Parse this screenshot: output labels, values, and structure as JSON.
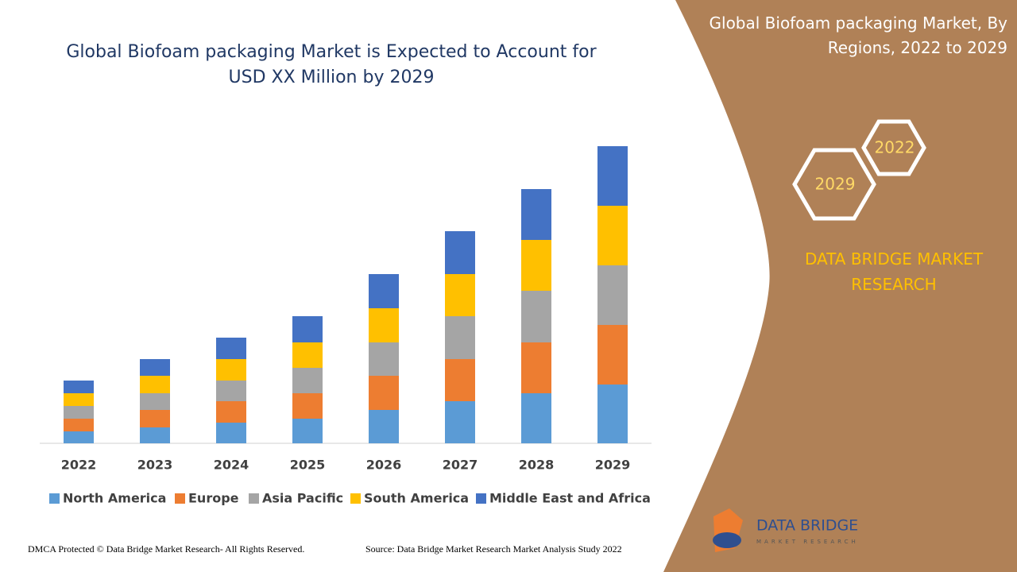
{
  "chart_data": {
    "type": "stacked-bar",
    "title": "Global Biofoam packaging Market is Expected to Account for USD XX Million by 2029",
    "categories": [
      "2022",
      "2023",
      "2024",
      "2025",
      "2026",
      "2027",
      "2028",
      "2029"
    ],
    "series": [
      {
        "name": "North America",
        "color": "#5b9bd5",
        "values": [
          15,
          20,
          26,
          31,
          42,
          53,
          63,
          74
        ]
      },
      {
        "name": "Europe",
        "color": "#ed7d31",
        "values": [
          16,
          22,
          27,
          32,
          43,
          53,
          64,
          75
        ]
      },
      {
        "name": "Asia Pacific",
        "color": "#a5a5a5",
        "values": [
          16,
          21,
          26,
          32,
          42,
          54,
          65,
          75
        ]
      },
      {
        "name": "South America",
        "color": "#ffc000",
        "values": [
          16,
          22,
          27,
          32,
          43,
          53,
          64,
          75
        ]
      },
      {
        "name": "Middle East and Africa",
        "color": "#4472c4",
        "values": [
          16,
          21,
          27,
          33,
          43,
          54,
          64,
          75
        ]
      }
    ],
    "ylim": [
      0,
      400
    ]
  },
  "panel": {
    "title": "Global Biofoam packaging Market, By Regions, 2022 to 2029",
    "hex_start": "2022",
    "hex_end": "2029",
    "brand": "DATA BRIDGE MARKET RESEARCH"
  },
  "logo": {
    "name": "DATA BRIDGE",
    "tagline": "MARKET RESEARCH"
  },
  "footer": {
    "copyright": "DMCA Protected © Data Bridge Market Research- All Rights Reserved.",
    "source": "Source: Data Bridge Market Research Market Analysis Study 2022"
  }
}
